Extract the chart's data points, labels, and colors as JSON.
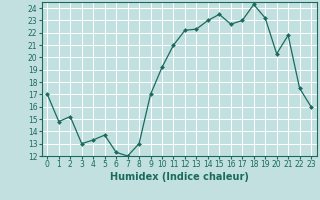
{
  "xlabel": "Humidex (Indice chaleur)",
  "x": [
    0,
    1,
    2,
    3,
    4,
    5,
    6,
    7,
    8,
    9,
    10,
    11,
    12,
    13,
    14,
    15,
    16,
    17,
    18,
    19,
    20,
    21,
    22,
    23
  ],
  "y": [
    17,
    14.8,
    15.2,
    13,
    13.3,
    13.7,
    12.3,
    12,
    13,
    17,
    19.2,
    21,
    22.2,
    22.3,
    23,
    23.5,
    22.7,
    23,
    24.3,
    23.2,
    20.3,
    21.8,
    17.5,
    16
  ],
  "line_color": "#1a6b5e",
  "marker": "D",
  "marker_size": 2.0,
  "bg_color": "#c2e0e0",
  "grid_color": "#ffffff",
  "ylim": [
    12,
    24.5
  ],
  "xlim": [
    -0.5,
    23.5
  ],
  "yticks": [
    12,
    13,
    14,
    15,
    16,
    17,
    18,
    19,
    20,
    21,
    22,
    23,
    24
  ],
  "xticks": [
    0,
    1,
    2,
    3,
    4,
    5,
    6,
    7,
    8,
    9,
    10,
    11,
    12,
    13,
    14,
    15,
    16,
    17,
    18,
    19,
    20,
    21,
    22,
    23
  ],
  "tick_fontsize": 5.5,
  "xlabel_fontsize": 7
}
